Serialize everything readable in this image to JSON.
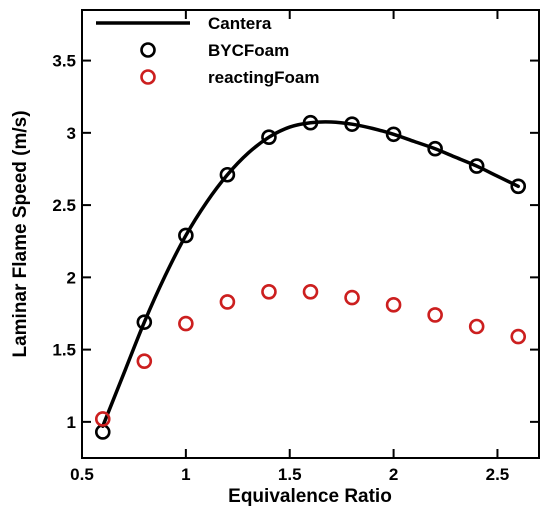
{
  "chart_data": {
    "type": "line",
    "title": "",
    "xlabel": "Equivalence Ratio",
    "ylabel": "Laminar Flame Speed (m/s)",
    "xlim": [
      0.5,
      2.7
    ],
    "ylim": [
      0.75,
      3.85
    ],
    "xticks": [
      0.5,
      1,
      1.5,
      2,
      2.5
    ],
    "xtick_labels": [
      "0.5",
      "1",
      "1.5",
      "2",
      "2.5"
    ],
    "yticks": [
      1,
      1.5,
      2,
      2.5,
      3,
      3.5
    ],
    "ytick_labels": [
      "1",
      "1.5",
      "2",
      "2.5",
      "3",
      "3.5"
    ],
    "grid": false,
    "legend_position": "top-left",
    "series": [
      {
        "name": "Cantera",
        "style": "line",
        "color": "#000000",
        "x": [
          0.6,
          0.7,
          0.8,
          0.9,
          1.0,
          1.1,
          1.2,
          1.3,
          1.4,
          1.5,
          1.6,
          1.7,
          1.8,
          1.9,
          2.0,
          2.1,
          2.2,
          2.3,
          2.4,
          2.5,
          2.6
        ],
        "y": [
          0.97,
          1.33,
          1.69,
          2.01,
          2.29,
          2.52,
          2.71,
          2.86,
          2.97,
          3.04,
          3.07,
          3.075,
          3.06,
          3.03,
          2.99,
          2.94,
          2.89,
          2.83,
          2.77,
          2.7,
          2.63
        ]
      },
      {
        "name": "BYCFoam",
        "style": "marker",
        "color": "#000000",
        "x": [
          0.6,
          0.8,
          1.0,
          1.2,
          1.4,
          1.6,
          1.8,
          2.0,
          2.2,
          2.4,
          2.6
        ],
        "y": [
          0.93,
          1.69,
          2.29,
          2.71,
          2.97,
          3.07,
          3.06,
          2.99,
          2.89,
          2.77,
          2.63
        ]
      },
      {
        "name": "reactingFoam",
        "style": "marker",
        "color": "#cc1f1f",
        "x": [
          0.6,
          0.8,
          1.0,
          1.2,
          1.4,
          1.6,
          1.8,
          2.0,
          2.2,
          2.4,
          2.6
        ],
        "y": [
          1.02,
          1.42,
          1.68,
          1.83,
          1.9,
          1.9,
          1.86,
          1.81,
          1.74,
          1.66,
          1.59
        ]
      }
    ]
  }
}
